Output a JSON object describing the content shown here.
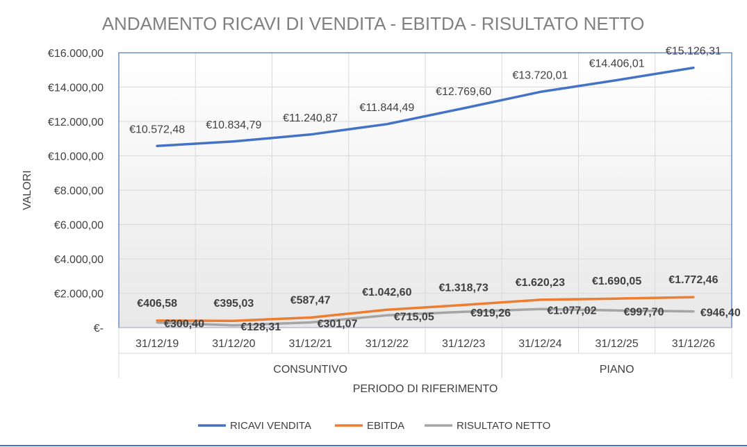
{
  "chart_data": {
    "type": "line",
    "title": "ANDAMENTO RICAVI DI VENDITA - EBITDA - RISULTATO NETTO",
    "xlabel": "PERIODO DI RIFERIMENTO",
    "ylabel": "VALORI",
    "categories": [
      "31/12/19",
      "31/12/20",
      "31/12/21",
      "31/12/22",
      "31/12/23",
      "31/12/24",
      "31/12/25",
      "31/12/26"
    ],
    "groups": [
      {
        "label": "CONSUNTIVO",
        "count": 5
      },
      {
        "label": "PIANO",
        "count": 3
      }
    ],
    "ylim": [
      0,
      16000
    ],
    "yticks": [
      0,
      2000,
      4000,
      6000,
      8000,
      10000,
      12000,
      14000,
      16000
    ],
    "ytick_labels": [
      "€-",
      "€2.000,00",
      "€4.000,00",
      "€6.000,00",
      "€8.000,00",
      "€10.000,00",
      "€12.000,00",
      "€14.000,00",
      "€16.000,00"
    ],
    "grid": true,
    "legend_position": "bottom",
    "series": [
      {
        "name": "RICAVI VENDITA",
        "color": "#4472C4",
        "values": [
          10572.48,
          10834.79,
          11240.87,
          11844.49,
          12769.6,
          13720.01,
          14406.01,
          15126.31
        ],
        "labels": [
          "€10.572,48",
          "€10.834,79",
          "€11.240,87",
          "€11.844,49",
          "€12.769,60",
          "€13.720,01",
          "€14.406,01",
          "€15.126,31"
        ]
      },
      {
        "name": "EBITDA",
        "color": "#ED7D31",
        "values": [
          406.58,
          395.03,
          587.47,
          1042.6,
          1318.73,
          1620.23,
          1690.05,
          1772.46
        ],
        "labels": [
          "€406,58",
          "€395,03",
          "€587,47",
          "€1.042,60",
          "€1.318,73",
          "€1.620,23",
          "€1.690,05",
          "€1.772,46"
        ]
      },
      {
        "name": "RISULTATO NETTO",
        "color": "#A5A5A5",
        "values": [
          300.4,
          128.31,
          301.07,
          715.05,
          919.26,
          1077.02,
          997.7,
          946.4
        ],
        "labels": [
          "€300,40",
          "€128,31",
          "€301,07",
          "€715,05",
          "€919,26",
          "€1.077,02",
          "€997,70",
          "€946,40"
        ]
      }
    ]
  }
}
